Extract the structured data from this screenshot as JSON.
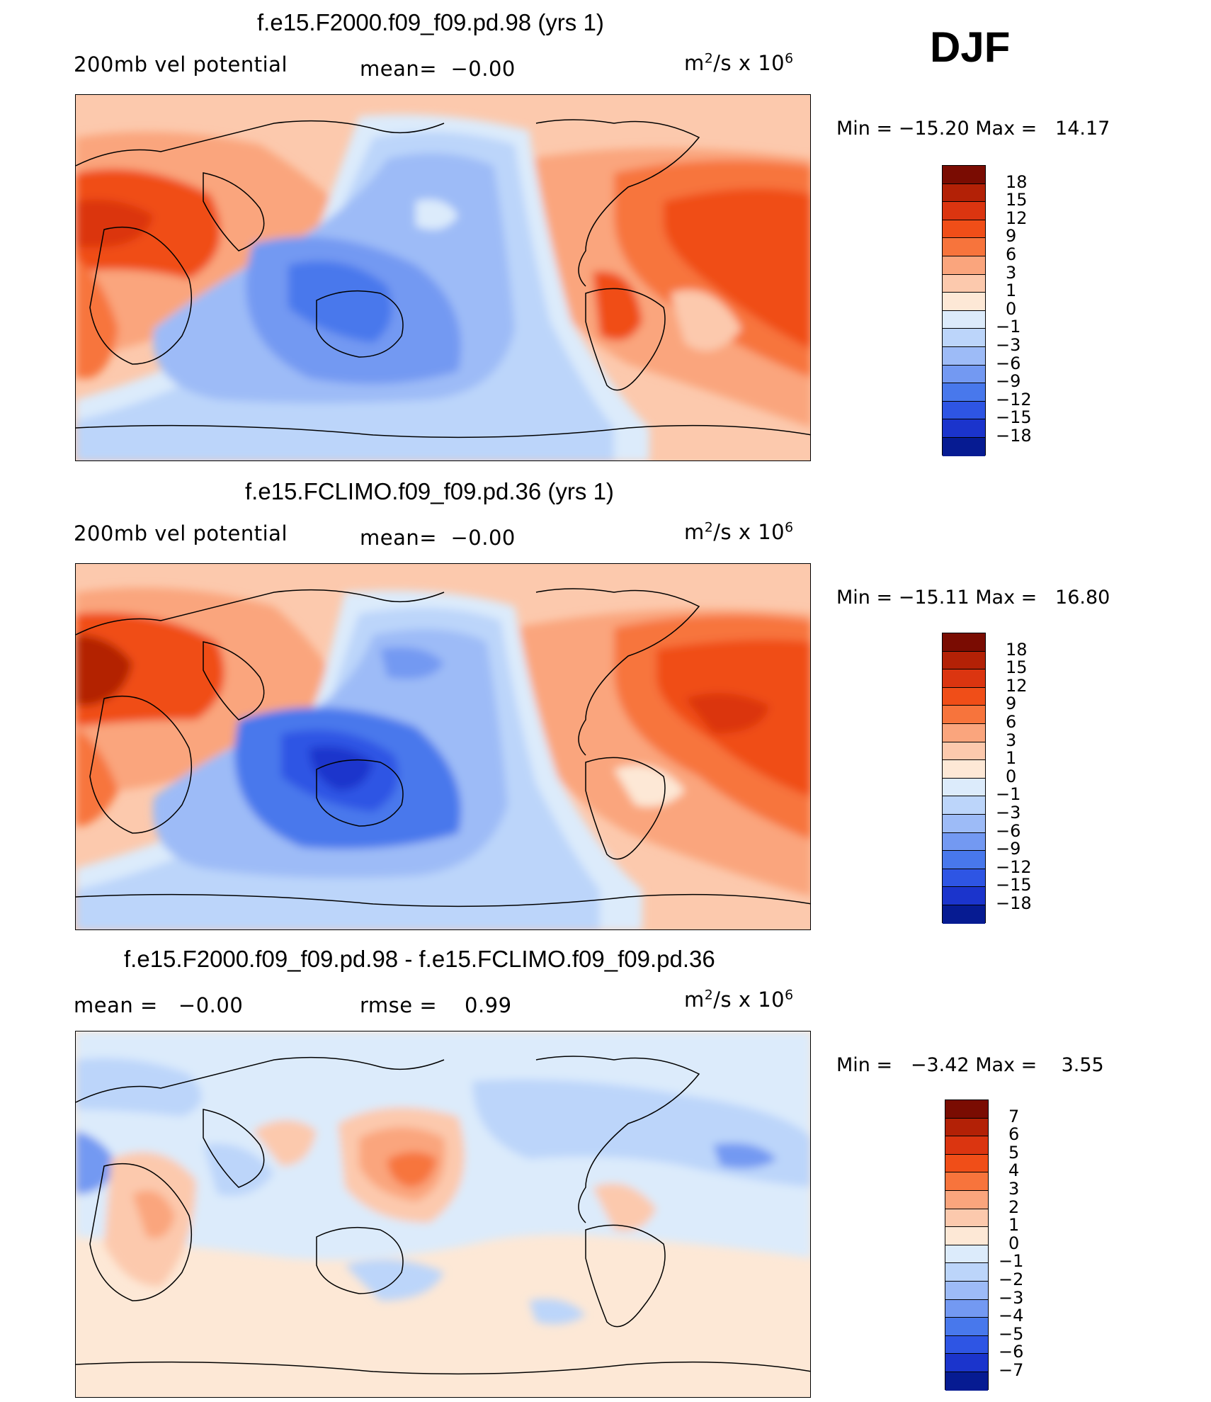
{
  "season": "DJF",
  "chart_data": [
    {
      "type": "heatmap",
      "title": "f.e15.F2000.f09_f09.pd.98 (yrs 1)",
      "variable": "200mb vel potential",
      "mean_label": "mean=",
      "mean_value": "−0.00",
      "units": "m²/s x 10⁶",
      "units_base": "m",
      "units_exp": "2",
      "units_mid": "/s x 10",
      "units_pow": "6",
      "min_label": "Min =",
      "min_value": "−15.20",
      "max_label": "Max =",
      "max_value": "14.17",
      "colorbar": {
        "ticks": [
          "18",
          "15",
          "12",
          "9",
          "6",
          "3",
          "1",
          "0",
          "−1",
          "−3",
          "−6",
          "−9",
          "−12",
          "−15",
          "−18"
        ],
        "colors": [
          "#7a0c02",
          "#b32106",
          "#db3510",
          "#f04e18",
          "#f7743c",
          "#faa57d",
          "#fcc9ad",
          "#fde8d6",
          "#dcebfb",
          "#bcd5fa",
          "#9dbbf7",
          "#7399f2",
          "#4878ec",
          "#2e55e4",
          "#1b34cc",
          "#061b92"
        ]
      }
    },
    {
      "type": "heatmap",
      "title": "f.e15.FCLIMO.f09_f09.pd.36 (yrs 1)",
      "variable": "200mb vel potential",
      "mean_label": "mean=",
      "mean_value": "−0.00",
      "units": "m²/s x 10⁶",
      "units_base": "m",
      "units_exp": "2",
      "units_mid": "/s x 10",
      "units_pow": "6",
      "min_label": "Min =",
      "min_value": "−15.11",
      "max_label": "Max =",
      "max_value": "16.80",
      "colorbar": {
        "ticks": [
          "18",
          "15",
          "12",
          "9",
          "6",
          "3",
          "1",
          "0",
          "−1",
          "−3",
          "−6",
          "−9",
          "−12",
          "−15",
          "−18"
        ],
        "colors": [
          "#7a0c02",
          "#b32106",
          "#db3510",
          "#f04e18",
          "#f7743c",
          "#faa57d",
          "#fcc9ad",
          "#fde8d6",
          "#dcebfb",
          "#bcd5fa",
          "#9dbbf7",
          "#7399f2",
          "#4878ec",
          "#2e55e4",
          "#1b34cc",
          "#061b92"
        ]
      }
    },
    {
      "type": "heatmap",
      "title": "f.e15.F2000.f09_f09.pd.98 - f.e15.FCLIMO.f09_f09.pd.36",
      "mean_label": "mean =",
      "mean_value": "−0.00",
      "rmse_label": "rmse =",
      "rmse_value": "0.99",
      "units": "m²/s x 10⁶",
      "units_base": "m",
      "units_exp": "2",
      "units_mid": "/s x 10",
      "units_pow": "6",
      "min_label": "Min =",
      "min_value": "−3.42",
      "max_label": "Max =",
      "max_value": "3.55",
      "colorbar": {
        "ticks": [
          "7",
          "6",
          "5",
          "4",
          "3",
          "2",
          "1",
          "0",
          "−1",
          "−2",
          "−3",
          "−4",
          "−5",
          "−6",
          "−7"
        ],
        "colors": [
          "#7a0c02",
          "#b32106",
          "#db3510",
          "#f04e18",
          "#f7743c",
          "#faa57d",
          "#fcc9ad",
          "#fde8d6",
          "#dcebfb",
          "#bcd5fa",
          "#9dbbf7",
          "#7399f2",
          "#4878ec",
          "#2e55e4",
          "#1b34cc",
          "#061b92"
        ]
      }
    }
  ]
}
